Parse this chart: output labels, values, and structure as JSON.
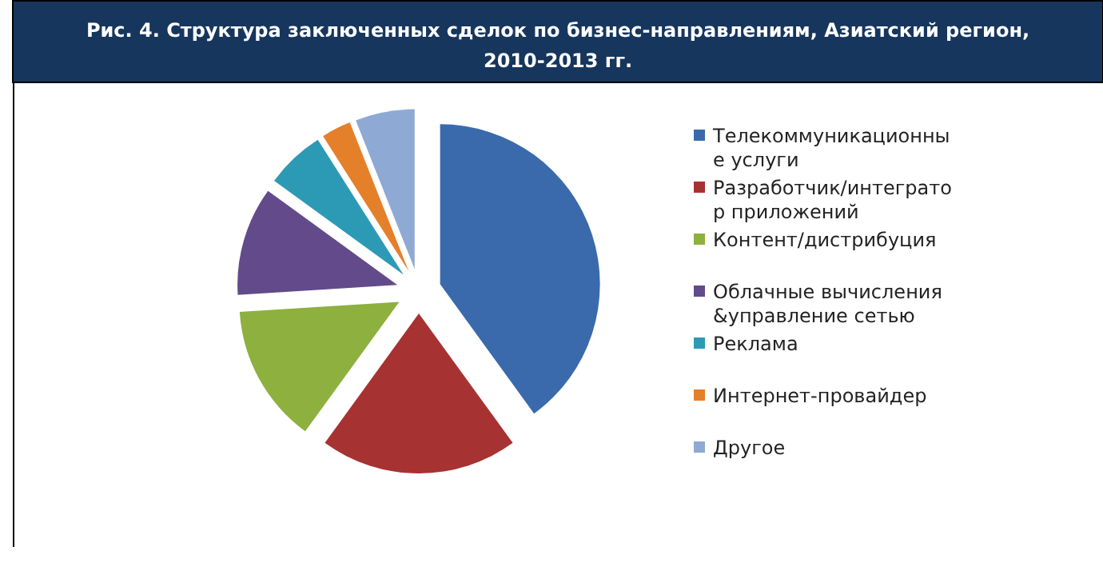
{
  "chart_data": {
    "type": "pie",
    "title": "Рис. 4. Структура заключенных сделок по бизнес-направлениям, Азиатский регион, 2010-2013 гг.",
    "categories": [
      "Телекоммуникационные услуги",
      "Разработчик/интегратор приложений",
      "Контент/дистрибуция",
      "Облачные вычисления &управление сетью",
      "Реклама",
      "Интернет-провайдер",
      "Другое"
    ],
    "values": [
      40,
      20,
      14,
      11,
      6,
      3,
      6
    ],
    "colors": [
      "#3a6aab",
      "#a73232",
      "#8db03f",
      "#634a8a",
      "#2d9ab5",
      "#e5802a",
      "#8fa9d5"
    ],
    "legend": "right"
  }
}
